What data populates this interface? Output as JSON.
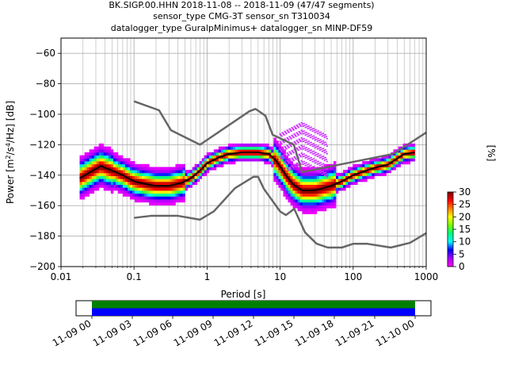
{
  "header": {
    "line1": "BK.SIGP.00.HHN   2018-11-08 -- 2018-11-09  (47/47 segments)",
    "line2": "sensor_type CMG-3T sensor_sn T310034",
    "line3": "datalogger_type GuralpMinimus+ datalogger_sn MINP-DF59"
  },
  "chart_data": [
    {
      "type": "heatmap",
      "title": "",
      "xlabel": "Period [s]",
      "ylabel": "Power [m^2/s^4/Hz] [dB]",
      "xscale": "log",
      "xlim": [
        0.01,
        1000
      ],
      "ylim": [
        -200,
        -50
      ],
      "x_ticks": [
        0.01,
        0.1,
        1,
        10,
        100,
        1000
      ],
      "x_tick_labels": [
        "0.01",
        "0.1",
        "1",
        "10",
        "100",
        "1000"
      ],
      "y_ticks": [
        -200,
        -180,
        -160,
        -140,
        -120,
        -100,
        -80,
        -60
      ],
      "y_tick_labels": [
        "−200",
        "−180",
        "−160",
        "−140",
        "−120",
        "−100",
        "−80",
        "−60"
      ],
      "grid": true,
      "colorbar": {
        "label": "[%]",
        "range": [
          0,
          30
        ],
        "ticks": [
          0,
          5,
          10,
          15,
          20,
          25,
          30
        ],
        "tick_labels": [
          "0",
          "5",
          "10",
          "15",
          "20",
          "25",
          "30"
        ],
        "colors": [
          "#ffffff",
          "#ff00ff",
          "#aa00ff",
          "#0000ff",
          "#00ffff",
          "#00ff80",
          "#80ff00",
          "#ffff00",
          "#ff8000",
          "#ff0000",
          "#800000"
        ]
      },
      "series": [
        {
          "role": "mode",
          "color": "#000000",
          "x": [
            0.018,
            0.025,
            0.035,
            0.05,
            0.07,
            0.1,
            0.15,
            0.2,
            0.3,
            0.45,
            0.6,
            0.8,
            1,
            1.5,
            2,
            3,
            5,
            7,
            9,
            12,
            15,
            20,
            30,
            50,
            70,
            100,
            150,
            200,
            300,
            400,
            500,
            700
          ],
          "y": [
            -142,
            -138,
            -134,
            -137,
            -140,
            -144,
            -146,
            -147,
            -147,
            -145,
            -142,
            -137,
            -132,
            -128,
            -126,
            -125,
            -125,
            -126,
            -131,
            -140,
            -146,
            -150,
            -150,
            -147,
            -144,
            -140,
            -137,
            -135,
            -133,
            -129,
            -126,
            -125
          ]
        },
        {
          "role": "high-noise-model",
          "color": "#666666",
          "x": [
            0.1,
            0.22,
            0.32,
            0.8,
            3.8,
            4.6,
            6.3,
            7.9,
            15.4,
            20,
            354.8,
            1000
          ],
          "y": [
            -91.5,
            -97.4,
            -110.5,
            -120,
            -98,
            -96.5,
            -101,
            -113.5,
            -120,
            -138,
            -126,
            -112
          ]
        },
        {
          "role": "low-noise-model",
          "color": "#666666",
          "x": [
            0.1,
            0.17,
            0.4,
            0.8,
            1.24,
            2.4,
            4.3,
            5,
            6,
            10,
            12,
            15.6,
            21.9,
            31.6,
            45,
            70,
            101,
            154,
            328,
            600,
            1000
          ],
          "y": [
            -168,
            -166.7,
            -166.7,
            -169.2,
            -163.7,
            -148.6,
            -141.1,
            -141.1,
            -149,
            -163.8,
            -166.2,
            -162.1,
            -177.5,
            -185,
            -187.5,
            -187.5,
            -185,
            -185,
            -187.5,
            -184.4,
            -178
          ]
        }
      ]
    },
    {
      "type": "timeline",
      "title": "",
      "xlabel": "",
      "xlim": [
        "11-09 00",
        "11-10 00"
      ],
      "x_tick_labels": [
        "11-09 00",
        "11-09 03",
        "11-09 06",
        "11-09 09",
        "11-09 12",
        "11-09 15",
        "11-09 18",
        "11-09 21",
        "11-10 00"
      ],
      "rows": [
        {
          "role": "data-coverage",
          "color": "#008000",
          "start": "11-09 00",
          "end": "11-10 00"
        },
        {
          "role": "psd-coverage",
          "color": "#0000ff",
          "start": "11-09 00",
          "end": "11-10 00"
        }
      ]
    }
  ]
}
